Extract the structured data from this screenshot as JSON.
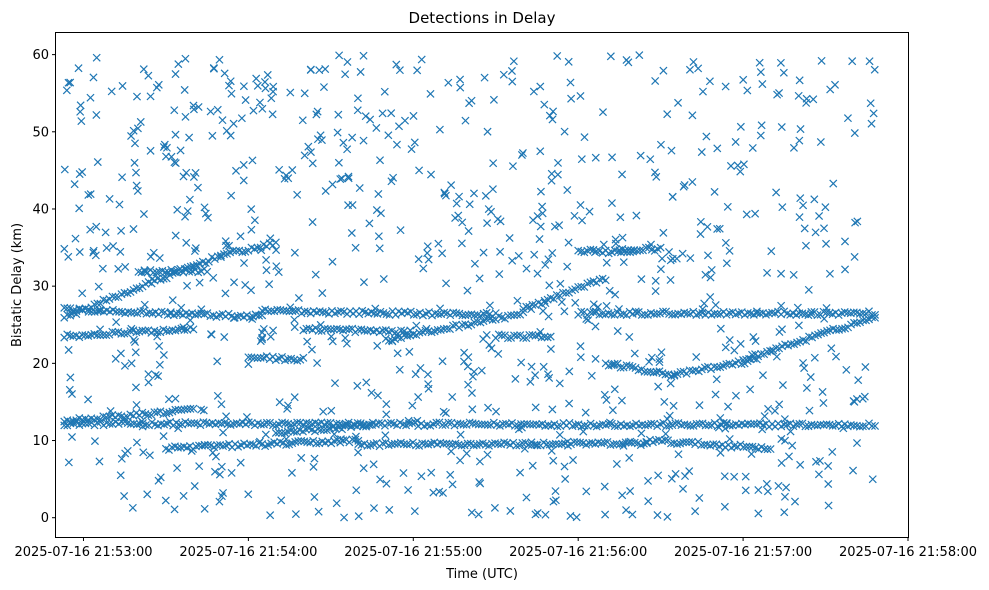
{
  "chart_data": {
    "type": "scatter",
    "title": "Detections in Delay",
    "xlabel": "Time (UTC)",
    "ylabel": "Bistatic Delay (km)",
    "xlim": [
      "2025-07-16 21:52:50",
      "2025-07-16 21:58:00"
    ],
    "ylim": [
      -2.5,
      62.8
    ],
    "x_ticks": [
      "2025-07-16 21:53:00",
      "2025-07-16 21:54:00",
      "2025-07-16 21:55:00",
      "2025-07-16 21:56:00",
      "2025-07-16 21:57:00",
      "2025-07-16 21:58:00"
    ],
    "y_ticks": [
      0,
      10,
      20,
      30,
      40,
      50,
      60
    ],
    "grid": false,
    "marker": "x",
    "color": "#1f77b4",
    "x_range_observed": [
      "2025-07-16 21:52:53",
      "2025-07-16 21:57:48"
    ],
    "tracks": [
      {
        "x_start": "2025-07-16 21:52:53",
        "x_end": "2025-07-16 21:57:48",
        "y_start": 12.2,
        "y_end": 12.0
      },
      {
        "x_start": "2025-07-16 21:52:53",
        "x_end": "2025-07-16 21:54:05",
        "y_start": 27.0,
        "y_end": 26.0
      },
      {
        "x_start": "2025-07-16 21:54:05",
        "x_end": "2025-07-16 21:55:30",
        "y_start": 26.8,
        "y_end": 26.3
      },
      {
        "x_start": "2025-07-16 21:52:53",
        "x_end": "2025-07-16 21:53:50",
        "y_start": 26.0,
        "y_end": 34.0
      },
      {
        "x_start": "2025-07-16 21:53:50",
        "x_end": "2025-07-16 21:54:10",
        "y_start": 34.0,
        "y_end": 35.5
      },
      {
        "x_start": "2025-07-16 21:52:53",
        "x_end": "2025-07-16 21:53:40",
        "y_start": 12.5,
        "y_end": 14.0
      },
      {
        "x_start": "2025-07-16 21:53:30",
        "x_end": "2025-07-16 21:54:40",
        "y_start": 9.0,
        "y_end": 10.0
      },
      {
        "x_start": "2025-07-16 21:54:40",
        "x_end": "2025-07-16 21:56:25",
        "y_start": 9.5,
        "y_end": 9.6
      },
      {
        "x_start": "2025-07-16 21:56:25",
        "x_end": "2025-07-16 21:57:10",
        "y_start": 10.0,
        "y_end": 9.0
      },
      {
        "x_start": "2025-07-16 21:54:50",
        "x_end": "2025-07-16 21:55:40",
        "y_start": 23.0,
        "y_end": 26.5
      },
      {
        "x_start": "2025-07-16 21:55:40",
        "x_end": "2025-07-16 21:56:10",
        "y_start": 27.0,
        "y_end": 31.0
      },
      {
        "x_start": "2025-07-16 21:56:00",
        "x_end": "2025-07-16 21:56:20",
        "y_start": 34.5,
        "y_end": 34.5
      },
      {
        "x_start": "2025-07-16 21:56:15",
        "x_end": "2025-07-16 21:56:30",
        "y_start": 34.8,
        "y_end": 34.8
      },
      {
        "x_start": "2025-07-16 21:56:10",
        "x_end": "2025-07-16 21:56:35",
        "y_start": 20.0,
        "y_end": 18.5
      },
      {
        "x_start": "2025-07-16 21:56:35",
        "x_end": "2025-07-16 21:57:05",
        "y_start": 18.5,
        "y_end": 20.5
      },
      {
        "x_start": "2025-07-16 21:57:00",
        "x_end": "2025-07-16 21:57:48",
        "y_start": 20.5,
        "y_end": 26.0
      },
      {
        "x_start": "2025-07-16 21:56:00",
        "x_end": "2025-07-16 21:57:48",
        "y_start": 26.5,
        "y_end": 26.5
      },
      {
        "x_start": "2025-07-16 21:52:53",
        "x_end": "2025-07-16 21:53:40",
        "y_start": 23.5,
        "y_end": 24.5
      },
      {
        "x_start": "2025-07-16 21:53:20",
        "x_end": "2025-07-16 21:53:45",
        "y_start": 32.0,
        "y_end": 32.0
      },
      {
        "x_start": "2025-07-16 21:54:00",
        "x_end": "2025-07-16 21:54:20",
        "y_start": 20.8,
        "y_end": 20.5
      },
      {
        "x_start": "2025-07-16 21:54:10",
        "x_end": "2025-07-16 21:54:45",
        "y_start": 11.0,
        "y_end": 12.0
      },
      {
        "x_start": "2025-07-16 21:54:20",
        "x_end": "2025-07-16 21:55:00",
        "y_start": 24.5,
        "y_end": 24.0
      },
      {
        "x_start": "2025-07-16 21:55:30",
        "x_end": "2025-07-16 21:55:50",
        "y_start": 23.5,
        "y_end": 23.5
      }
    ],
    "scatter_noise": "background detections spread over 0–60 km"
  }
}
